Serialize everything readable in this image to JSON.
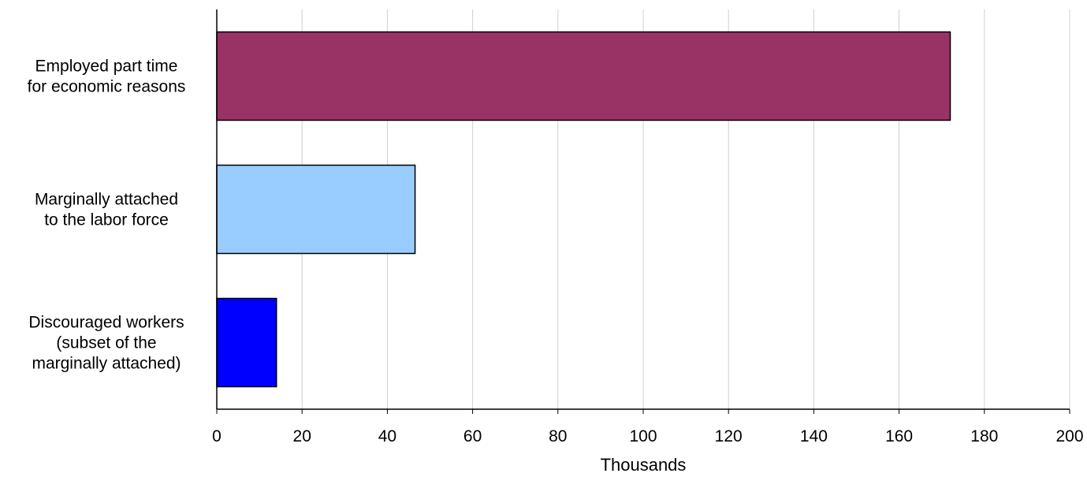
{
  "chart_data": {
    "type": "bar",
    "orientation": "horizontal",
    "categories": [
      [
        "Employed part time",
        "for economic reasons"
      ],
      [
        "Marginally attached",
        "to the labor force"
      ],
      [
        "Discouraged workers",
        "(subset of the",
        "marginally attached)"
      ]
    ],
    "values": [
      172,
      46.5,
      14
    ],
    "colors": [
      "#993366",
      "#99ccff",
      "#0000ff"
    ],
    "xlabel": "Thousands",
    "ylabel": "",
    "xlim": [
      0,
      200
    ],
    "xticks": [
      0,
      20,
      40,
      60,
      80,
      100,
      120,
      140,
      160,
      180,
      200
    ],
    "grid": true,
    "legend": "none"
  }
}
